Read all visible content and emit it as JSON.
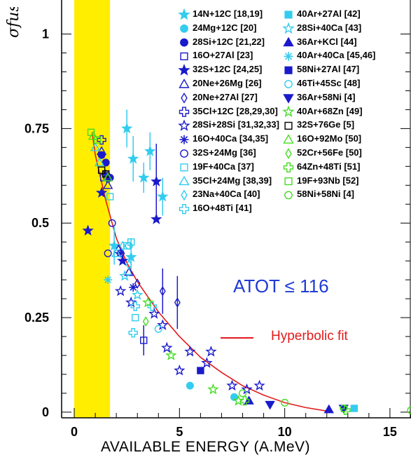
{
  "chart_data": {
    "type": "scatter",
    "title": "",
    "xlabel": "AVAILABLE ENERGY (A.MeV)",
    "ylabel": "σfus/σR",
    "xlim": [
      -0.6,
      16
    ],
    "ylim": [
      -0.015,
      1.09
    ],
    "xticks": [
      "0",
      "5",
      "10",
      "15"
    ],
    "yticks": [
      "0",
      "0.25",
      "0.5",
      "0.75",
      "1"
    ],
    "highlight_band": {
      "x_from": 0.0,
      "x_to": 1.7,
      "color": "#ffee00"
    },
    "annotation": "ATOT ≤ 116",
    "fit_label": "Hyperbolic fit",
    "fit_color": "#e21b1b",
    "fit_curve": [
      [
        0.85,
        0.74
      ],
      [
        1.0,
        0.68
      ],
      [
        1.5,
        0.56
      ],
      [
        2.0,
        0.46
      ],
      [
        2.5,
        0.395
      ],
      [
        3.0,
        0.345
      ],
      [
        4.0,
        0.265
      ],
      [
        5.0,
        0.2
      ],
      [
        6.0,
        0.145
      ],
      [
        7.0,
        0.105
      ],
      [
        8.0,
        0.07
      ],
      [
        9.0,
        0.045
      ],
      [
        10.0,
        0.025
      ],
      [
        11.0,
        0.012
      ],
      [
        12.0,
        0.003
      ],
      [
        12.3,
        0.0
      ]
    ],
    "legend": [
      {
        "label": "14N+12C [18,19]",
        "marker": "star",
        "color": "#33ccee",
        "filled": true
      },
      {
        "label": "24Mg+12C [20]",
        "marker": "circle",
        "color": "#33ccee",
        "filled": true
      },
      {
        "label": "28Si+12C [21,22]",
        "marker": "circle",
        "color": "#1a1acc",
        "filled": true
      },
      {
        "label": "16O+27Al [23]",
        "marker": "square",
        "color": "#1a1acc",
        "filled": false
      },
      {
        "label": "32S+12C [24,25]",
        "marker": "star",
        "color": "#1a1acc",
        "filled": true
      },
      {
        "label": "20Ne+26Mg [26]",
        "marker": "triangle",
        "color": "#1a1acc",
        "filled": false
      },
      {
        "label": "20Ne+27Al [27]",
        "marker": "diamond",
        "color": "#1a1acc",
        "filled": false
      },
      {
        "label": "35Cl+12C [28,29,30]",
        "marker": "cross",
        "color": "#1a1acc",
        "filled": false
      },
      {
        "label": "28Si+28Si [31,32,33]",
        "marker": "star",
        "color": "#1a1acc",
        "filled": false
      },
      {
        "label": "16O+40Ca [34,35]",
        "marker": "asterisk",
        "color": "#1a1acc",
        "filled": false
      },
      {
        "label": "32S+24Mg [36]",
        "marker": "circle",
        "color": "#1a1acc",
        "filled": false
      },
      {
        "label": "19F+40Ca [37]",
        "marker": "square",
        "color": "#33ccee",
        "filled": false
      },
      {
        "label": "35Cl+24Mg [38,39]",
        "marker": "triangle",
        "color": "#33ccee",
        "filled": false
      },
      {
        "label": "23Na+40Ca [40]",
        "marker": "diamond",
        "color": "#33ccee",
        "filled": false
      },
      {
        "label": "16O+48Ti [41]",
        "marker": "cross",
        "color": "#33ccee",
        "filled": false
      },
      {
        "label": "40Ar+27Al [42]",
        "marker": "square",
        "color": "#33ccee",
        "filled": true
      },
      {
        "label": "28Si+40Ca [43]",
        "marker": "star",
        "color": "#33ccee",
        "filled": false
      },
      {
        "label": "36Ar+KCl [44]",
        "marker": "triangle",
        "color": "#1a1acc",
        "filled": true
      },
      {
        "label": "40Ar+40Ca [45,46]",
        "marker": "asterisk",
        "color": "#33ccee",
        "filled": false
      },
      {
        "label": "58Ni+27Al [47]",
        "marker": "square",
        "color": "#1a1acc",
        "filled": true
      },
      {
        "label": "46Ti+45Sc [48]",
        "marker": "circle",
        "color": "#33ccee",
        "filled": false
      },
      {
        "label": "36Ar+58Ni [4]",
        "marker": "triangle-down",
        "color": "#1a1acc",
        "filled": true
      },
      {
        "label": "40Ar+68Zn [49]",
        "marker": "star",
        "color": "#44dd22",
        "filled": false
      },
      {
        "label": "32S+76Ge [5]",
        "marker": "square",
        "color": "#000000",
        "filled": false
      },
      {
        "label": "16O+92Mo [50]",
        "marker": "triangle",
        "color": "#44dd22",
        "filled": false
      },
      {
        "label": "52Cr+56Fe [50]",
        "marker": "diamond",
        "color": "#44dd22",
        "filled": false
      },
      {
        "label": "64Zn+48Ti [51]",
        "marker": "cross",
        "color": "#44dd22",
        "filled": false
      },
      {
        "label": "19F+93Nb [52]",
        "marker": "square",
        "color": "#44dd22",
        "filled": false
      },
      {
        "label": "58Ni+58Ni [4]",
        "marker": "circle",
        "color": "#44dd22",
        "filled": false
      }
    ],
    "points": [
      {
        "s": 0,
        "x": 2.8,
        "y": 0.67,
        "err": 0.06
      },
      {
        "s": 0,
        "x": 2.5,
        "y": 0.75,
        "err": 0.05
      },
      {
        "s": 0,
        "x": 3.6,
        "y": 0.69,
        "err": 0.05
      },
      {
        "s": 0,
        "x": 4.2,
        "y": 0.57,
        "err": 0.05
      },
      {
        "s": 0,
        "x": 3.3,
        "y": 0.62,
        "err": 0.04
      },
      {
        "s": 0,
        "x": 1.9,
        "y": 0.44,
        "err": 0.05
      },
      {
        "s": 0,
        "x": 2.7,
        "y": 0.41,
        "err": 0.05
      },
      {
        "s": 1,
        "x": 5.5,
        "y": 0.07
      },
      {
        "s": 1,
        "x": 7.6,
        "y": 0.04
      },
      {
        "s": 2,
        "x": 1.3,
        "y": 0.68
      },
      {
        "s": 2,
        "x": 1.5,
        "y": 0.66
      },
      {
        "s": 2,
        "x": 1.7,
        "y": 0.62
      },
      {
        "s": 3,
        "x": 3.3,
        "y": 0.19,
        "err": 0.04
      },
      {
        "s": 3,
        "x": 1.4,
        "y": 0.62
      },
      {
        "s": 4,
        "x": 0.65,
        "y": 0.48
      },
      {
        "s": 4,
        "x": 3.9,
        "y": 0.61,
        "err": 0.1
      },
      {
        "s": 4,
        "x": 3.9,
        "y": 0.51
      },
      {
        "s": 4,
        "x": 2.3,
        "y": 0.4
      },
      {
        "s": 4,
        "x": 1.3,
        "y": 0.58
      },
      {
        "s": 5,
        "x": 1.3,
        "y": 0.69
      },
      {
        "s": 5,
        "x": 1.6,
        "y": 0.6
      },
      {
        "s": 5,
        "x": 2.1,
        "y": 0.43
      },
      {
        "s": 5,
        "x": 2.6,
        "y": 0.37
      },
      {
        "s": 6,
        "x": 4.2,
        "y": 0.32,
        "err": 0.06
      },
      {
        "s": 6,
        "x": 4.9,
        "y": 0.29,
        "err": 0.07
      },
      {
        "s": 6,
        "x": 3.0,
        "y": 0.34
      },
      {
        "s": 7,
        "x": 1.3,
        "y": 0.72
      },
      {
        "s": 7,
        "x": 1.6,
        "y": 0.62
      },
      {
        "s": 8,
        "x": 2.2,
        "y": 0.32
      },
      {
        "s": 8,
        "x": 2.7,
        "y": 0.29
      },
      {
        "s": 8,
        "x": 3.8,
        "y": 0.26
      },
      {
        "s": 8,
        "x": 4.2,
        "y": 0.23
      },
      {
        "s": 8,
        "x": 4.4,
        "y": 0.17
      },
      {
        "s": 8,
        "x": 5.5,
        "y": 0.16
      },
      {
        "s": 8,
        "x": 6.3,
        "y": 0.13
      },
      {
        "s": 8,
        "x": 6.5,
        "y": 0.16
      },
      {
        "s": 8,
        "x": 7.5,
        "y": 0.07
      },
      {
        "s": 8,
        "x": 8.2,
        "y": 0.06
      },
      {
        "s": 8,
        "x": 8.8,
        "y": 0.07
      },
      {
        "s": 8,
        "x": 5.0,
        "y": 0.11
      },
      {
        "s": 9,
        "x": 1.5,
        "y": 0.63
      },
      {
        "s": 9,
        "x": 2.2,
        "y": 0.42
      },
      {
        "s": 9,
        "x": 2.8,
        "y": 0.33
      },
      {
        "s": 10,
        "x": 1.8,
        "y": 0.5
      },
      {
        "s": 10,
        "x": 2.2,
        "y": 0.42
      },
      {
        "s": 10,
        "x": 1.6,
        "y": 0.42
      },
      {
        "s": 11,
        "x": 2.5,
        "y": 0.44
      },
      {
        "s": 11,
        "x": 2.7,
        "y": 0.45
      },
      {
        "s": 11,
        "x": 1.7,
        "y": 0.57
      },
      {
        "s": 11,
        "x": 2.9,
        "y": 0.25
      },
      {
        "s": 12,
        "x": 1.0,
        "y": 0.7
      },
      {
        "s": 12,
        "x": 1.2,
        "y": 0.66
      },
      {
        "s": 12,
        "x": 2.0,
        "y": 0.42
      },
      {
        "s": 13,
        "x": 2.3,
        "y": 0.44
      },
      {
        "s": 13,
        "x": 2.6,
        "y": 0.39
      },
      {
        "s": 14,
        "x": 2.8,
        "y": 0.21
      },
      {
        "s": 14,
        "x": 3.7,
        "y": 0.28
      },
      {
        "s": 14,
        "x": 2.9,
        "y": 0.28
      },
      {
        "s": 15,
        "x": 13.3,
        "y": 0.01
      },
      {
        "s": 16,
        "x": 2.4,
        "y": 0.36
      },
      {
        "s": 16,
        "x": 3.0,
        "y": 0.31
      },
      {
        "s": 17,
        "x": 8.3,
        "y": 0.03
      },
      {
        "s": 17,
        "x": 12.1,
        "y": 0.007
      },
      {
        "s": 18,
        "x": 1.6,
        "y": 0.35
      },
      {
        "s": 19,
        "x": 6.0,
        "y": 0.11
      },
      {
        "s": 20,
        "x": 2.6,
        "y": 0.44
      },
      {
        "s": 20,
        "x": 4.0,
        "y": 0.22
      },
      {
        "s": 21,
        "x": 9.3,
        "y": 0.02
      },
      {
        "s": 21,
        "x": 12.8,
        "y": 0.01
      },
      {
        "s": 22,
        "x": 3.5,
        "y": 0.29
      },
      {
        "s": 22,
        "x": 4.6,
        "y": 0.15
      },
      {
        "s": 22,
        "x": 6.6,
        "y": 0.06
      },
      {
        "s": 22,
        "x": 7.8,
        "y": 0.03
      },
      {
        "s": 23,
        "x": 1.3,
        "y": 0.64
      },
      {
        "s": 23,
        "x": 1.5,
        "y": 0.63
      },
      {
        "s": 24,
        "x": 0.9,
        "y": 0.73
      },
      {
        "s": 24,
        "x": 1.6,
        "y": 0.62
      },
      {
        "s": 25,
        "x": 3.4,
        "y": 0.24
      },
      {
        "s": 26,
        "x": 8.1,
        "y": 0.03
      },
      {
        "s": 26,
        "x": 12.9,
        "y": 0.005
      },
      {
        "s": 27,
        "x": 0.8,
        "y": 0.74
      },
      {
        "s": 27,
        "x": 1.1,
        "y": 0.72
      },
      {
        "s": 28,
        "x": 10.0,
        "y": 0.025
      },
      {
        "s": 28,
        "x": 12.8,
        "y": 0.01
      },
      {
        "s": 28,
        "x": 16.0,
        "y": 0.005
      },
      {
        "s": 28,
        "x": 8.0,
        "y": 0.05
      }
    ]
  }
}
